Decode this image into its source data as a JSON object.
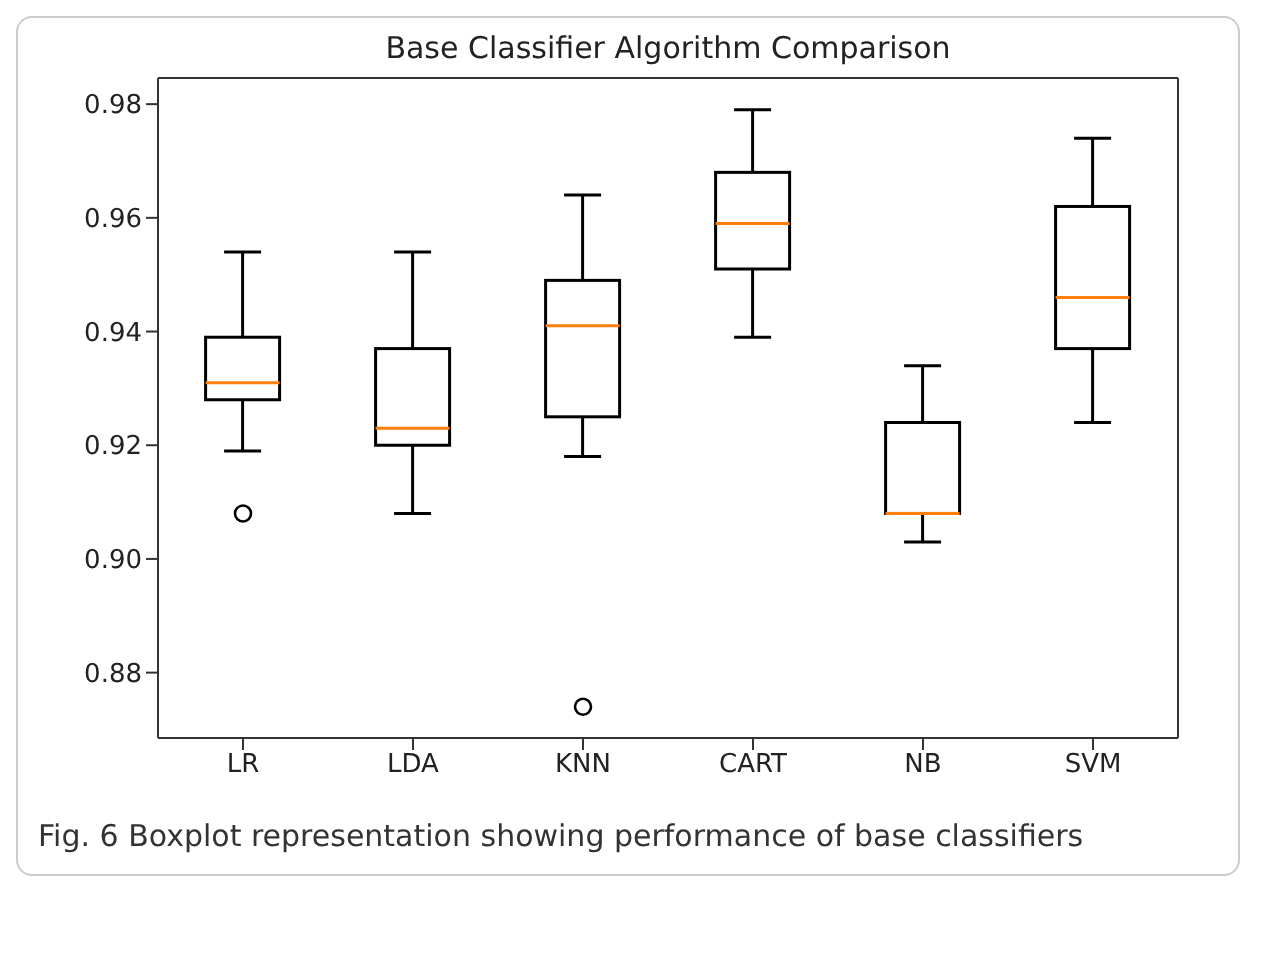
{
  "chart_data": {
    "type": "box",
    "title": "Base Classifier Algorithm Comparison",
    "categories": [
      "LR",
      "LDA",
      "KNN",
      "CART",
      "NB",
      "SVM"
    ],
    "boxes": [
      {
        "low": 0.919,
        "q1": 0.928,
        "median": 0.931,
        "q3": 0.939,
        "high": 0.954,
        "outliers": [
          0.908
        ]
      },
      {
        "low": 0.908,
        "q1": 0.92,
        "median": 0.923,
        "q3": 0.937,
        "high": 0.954
      },
      {
        "low": 0.918,
        "q1": 0.925,
        "median": 0.941,
        "q3": 0.949,
        "high": 0.964,
        "outliers": [
          0.874
        ]
      },
      {
        "low": 0.939,
        "q1": 0.951,
        "median": 0.959,
        "q3": 0.968,
        "high": 0.979
      },
      {
        "low": 0.903,
        "q1": 0.908,
        "median": 0.908,
        "q3": 0.924,
        "high": 0.934
      },
      {
        "low": 0.924,
        "q1": 0.937,
        "median": 0.946,
        "q3": 0.962,
        "high": 0.974
      }
    ],
    "color": "#000000",
    "ylim": [
      0.8685,
      0.9846
    ],
    "yticks": [
      {
        "value": 0.88,
        "label": "0.88"
      },
      {
        "value": 0.9,
        "label": "0.90"
      },
      {
        "value": 0.92,
        "label": "0.92"
      },
      {
        "value": 0.94,
        "label": "0.94"
      },
      {
        "value": 0.96,
        "label": "0.96"
      },
      {
        "value": 0.98,
        "label": "0.98"
      }
    ],
    "annotations": [
      "Fig. 6 Boxplot representation showing performance of base classifiers"
    ]
  }
}
